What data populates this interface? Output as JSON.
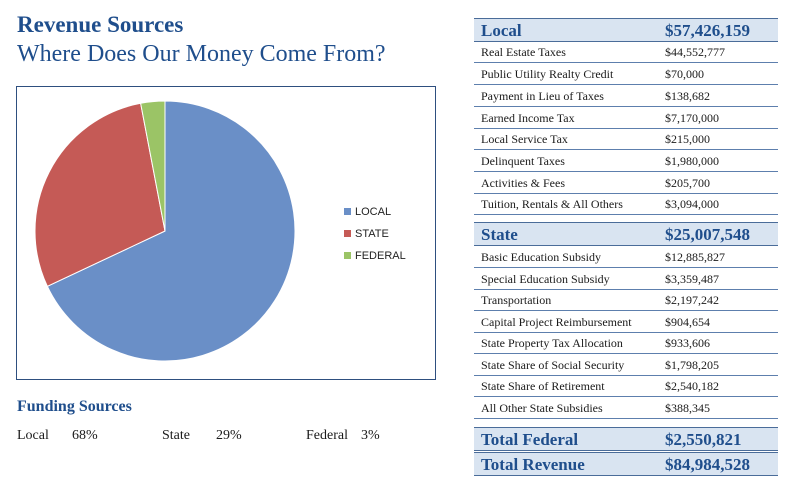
{
  "header": {
    "title": "Revenue Sources",
    "subtitle": "Where Does Our Money Come From?"
  },
  "chart_data": {
    "type": "pie",
    "categories": [
      "LOCAL",
      "STATE",
      "FEDERAL"
    ],
    "values": [
      68,
      29,
      3
    ],
    "colors": [
      "#6a8fc7",
      "#c55a56",
      "#9bc466"
    ],
    "legend_position": "right"
  },
  "funding": {
    "title": "Funding Sources",
    "items": [
      {
        "label": "Local",
        "pct": "68%"
      },
      {
        "label": "State",
        "pct": "29%"
      },
      {
        "label": "Federal",
        "pct": "3%"
      }
    ]
  },
  "table": {
    "local": {
      "label": "Local",
      "total": "$57,426,159",
      "rows": [
        {
          "label": "Real Estate Taxes",
          "value": "$44,552,777"
        },
        {
          "label": "Public Utility Realty Credit",
          "value": "$70,000"
        },
        {
          "label": "Payment in Lieu of Taxes",
          "value": "$138,682"
        },
        {
          "label": "Earned Income Tax",
          "value": "$7,170,000"
        },
        {
          "label": "Local Service Tax",
          "value": "$215,000"
        },
        {
          "label": "Delinquent Taxes",
          "value": "$1,980,000"
        },
        {
          "label": "Activities & Fees",
          "value": "$205,700"
        },
        {
          "label": "Tuition, Rentals & All Others",
          "value": "$3,094,000"
        }
      ]
    },
    "state": {
      "label": "State",
      "total": "$25,007,548",
      "rows": [
        {
          "label": "Basic Education Subsidy",
          "value": "$12,885,827"
        },
        {
          "label": "Special Education Subsidy",
          "value": "$3,359,487"
        },
        {
          "label": "Transportation",
          "value": "$2,197,242"
        },
        {
          "label": "Capital Project Reimbursement",
          "value": "$904,654"
        },
        {
          "label": "State Property Tax Allocation",
          "value": "$933,606"
        },
        {
          "label": "State Share of Social Security",
          "value": "$1,798,205"
        },
        {
          "label": "State Share of Retirement",
          "value": "$2,540,182"
        },
        {
          "label": "All Other State Subsidies",
          "value": "$388,345"
        }
      ]
    },
    "federal": {
      "label": "Total Federal",
      "total": "$2,550,821"
    },
    "revenue": {
      "label": "Total Revenue",
      "total": "$84,984,528"
    }
  }
}
